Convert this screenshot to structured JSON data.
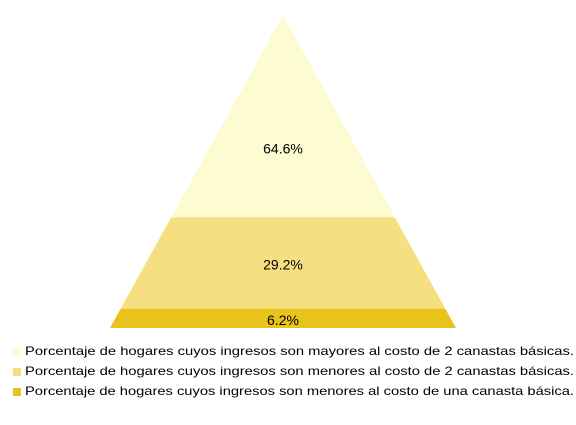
{
  "chart_data": {
    "type": "pyramid",
    "categories": [
      "Porcentaje de hogares cuyos ingresos son mayores al costo de 2 canastas básicas.",
      "Porcentaje de hogares cuyos ingresos son menores al costo de 2 canastas básicas.",
      "Porcentaje de hogares cuyos ingresos son menores al costo de una canasta básica."
    ],
    "values": [
      64.6,
      29.2,
      6.2
    ],
    "value_labels": [
      "64.6%",
      "29.2%",
      "6.2%"
    ],
    "colors": [
      "#fdfbd2",
      "#f5df80",
      "#e9c21b"
    ],
    "legend": "bottom"
  }
}
